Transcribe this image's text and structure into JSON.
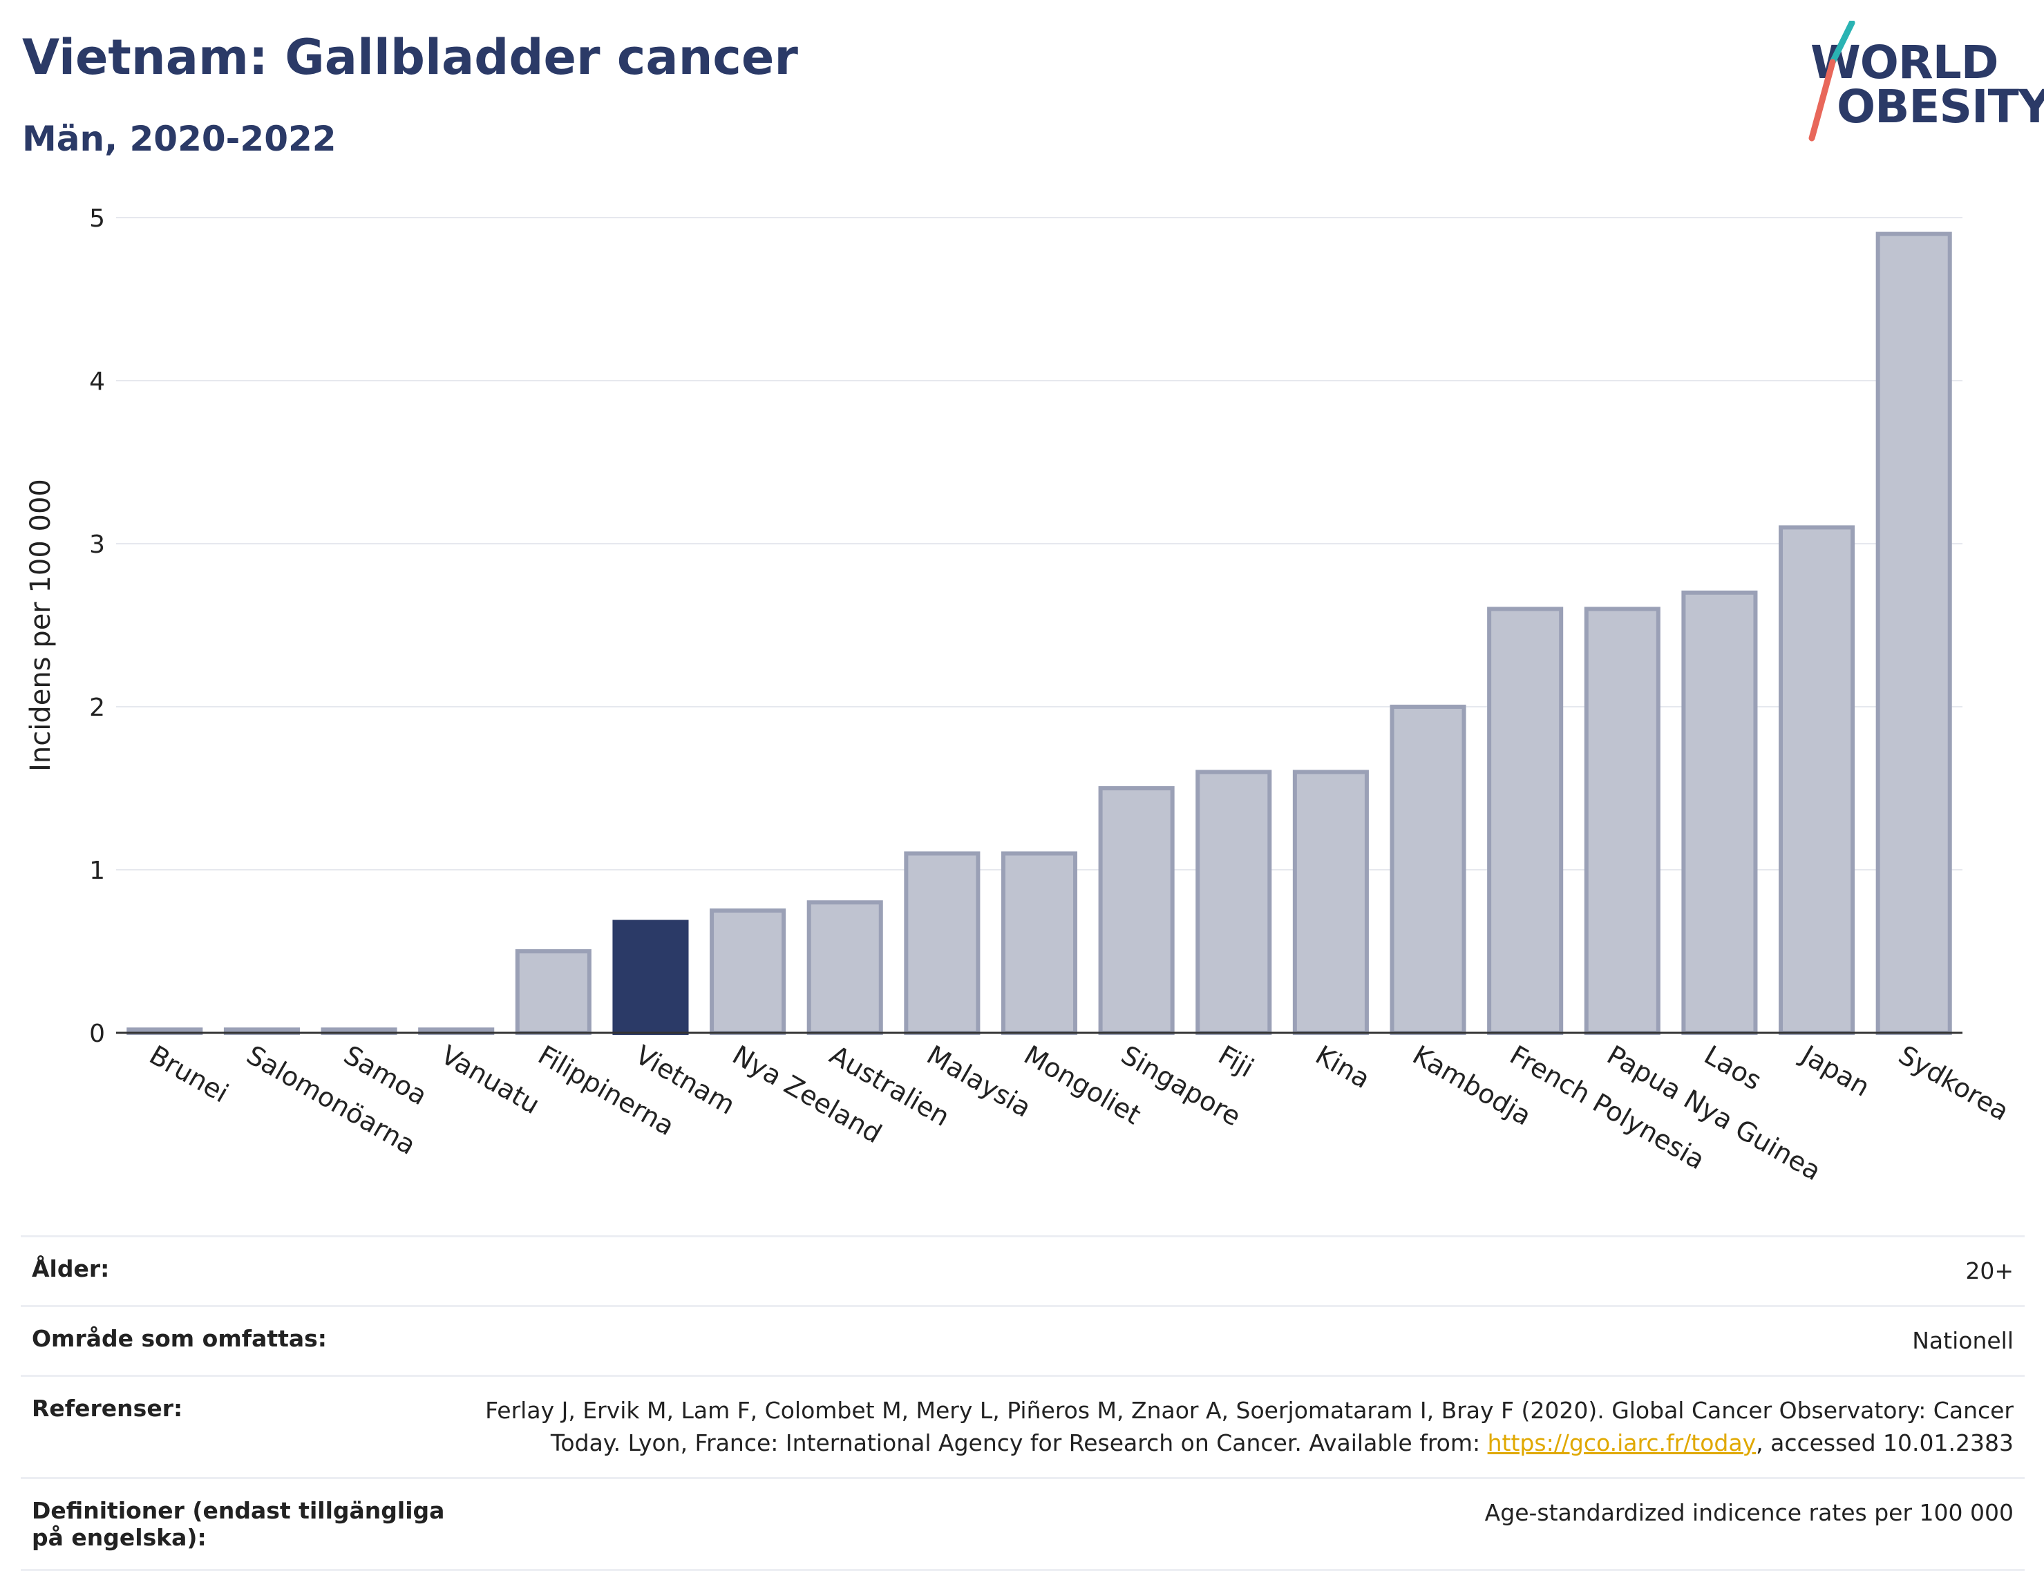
{
  "title": "Vietnam: Gallbladder cancer",
  "subtitle": "Män, 2020-2022",
  "logo": {
    "line1": "WORLD",
    "line2": "OBESITY"
  },
  "colors": {
    "highlight": "#2b3a67",
    "bar": "#bfc3d0",
    "bar_stroke": "#9aa0b6",
    "title": "#2b3a67",
    "grid": "#e6e8ee",
    "logo_slash_a": "#2ab3b3",
    "logo_slash_b": "#e8675a"
  },
  "chart_data": {
    "type": "bar",
    "categories": [
      "Brunei",
      "Salomonöarna",
      "Samoa",
      "Vanuatu",
      "Filippinerna",
      "Vietnam",
      "Nya Zeeland",
      "Australien",
      "Malaysia",
      "Mongoliet",
      "Singapore",
      "Fiji",
      "Kina",
      "Kambodja",
      "French Polynesia",
      "Papua Nya Guinea",
      "Laos",
      "Japan",
      "Sydkorea"
    ],
    "values": [
      0.02,
      0.02,
      0.02,
      0.02,
      0.5,
      0.68,
      0.75,
      0.8,
      1.1,
      1.1,
      1.5,
      1.6,
      1.6,
      2.0,
      2.6,
      2.6,
      2.7,
      3.1,
      4.9
    ],
    "highlight": "Vietnam",
    "ylabel": "Incidens per 100 000",
    "xlabel": "",
    "ylim": [
      0,
      5
    ],
    "yticks": [
      0,
      1,
      2,
      3,
      4,
      5
    ],
    "grid": true
  },
  "info": {
    "age_label": "Ålder:",
    "age_value": "20+",
    "area_label": "Område som omfattas:",
    "area_value": "Nationell",
    "ref_label": "Referenser:",
    "ref_text_1": "Ferlay J, Ervik M, Lam F, Colombet M, Mery L, Piñeros M, Znaor A, Soerjomataram I, Bray F (2020). Global Cancer Observatory: Cancer",
    "ref_text_2": "Today. Lyon, France: International Agency for Research on Cancer. Available from: ",
    "ref_link": "https://gco.iarc.fr/today",
    "ref_text_3": ", accessed 10.01.2383",
    "def_label": "Definitioner (endast tillgängliga på engelska):",
    "def_value": "Age-standardized indicence rates per 100 000"
  }
}
